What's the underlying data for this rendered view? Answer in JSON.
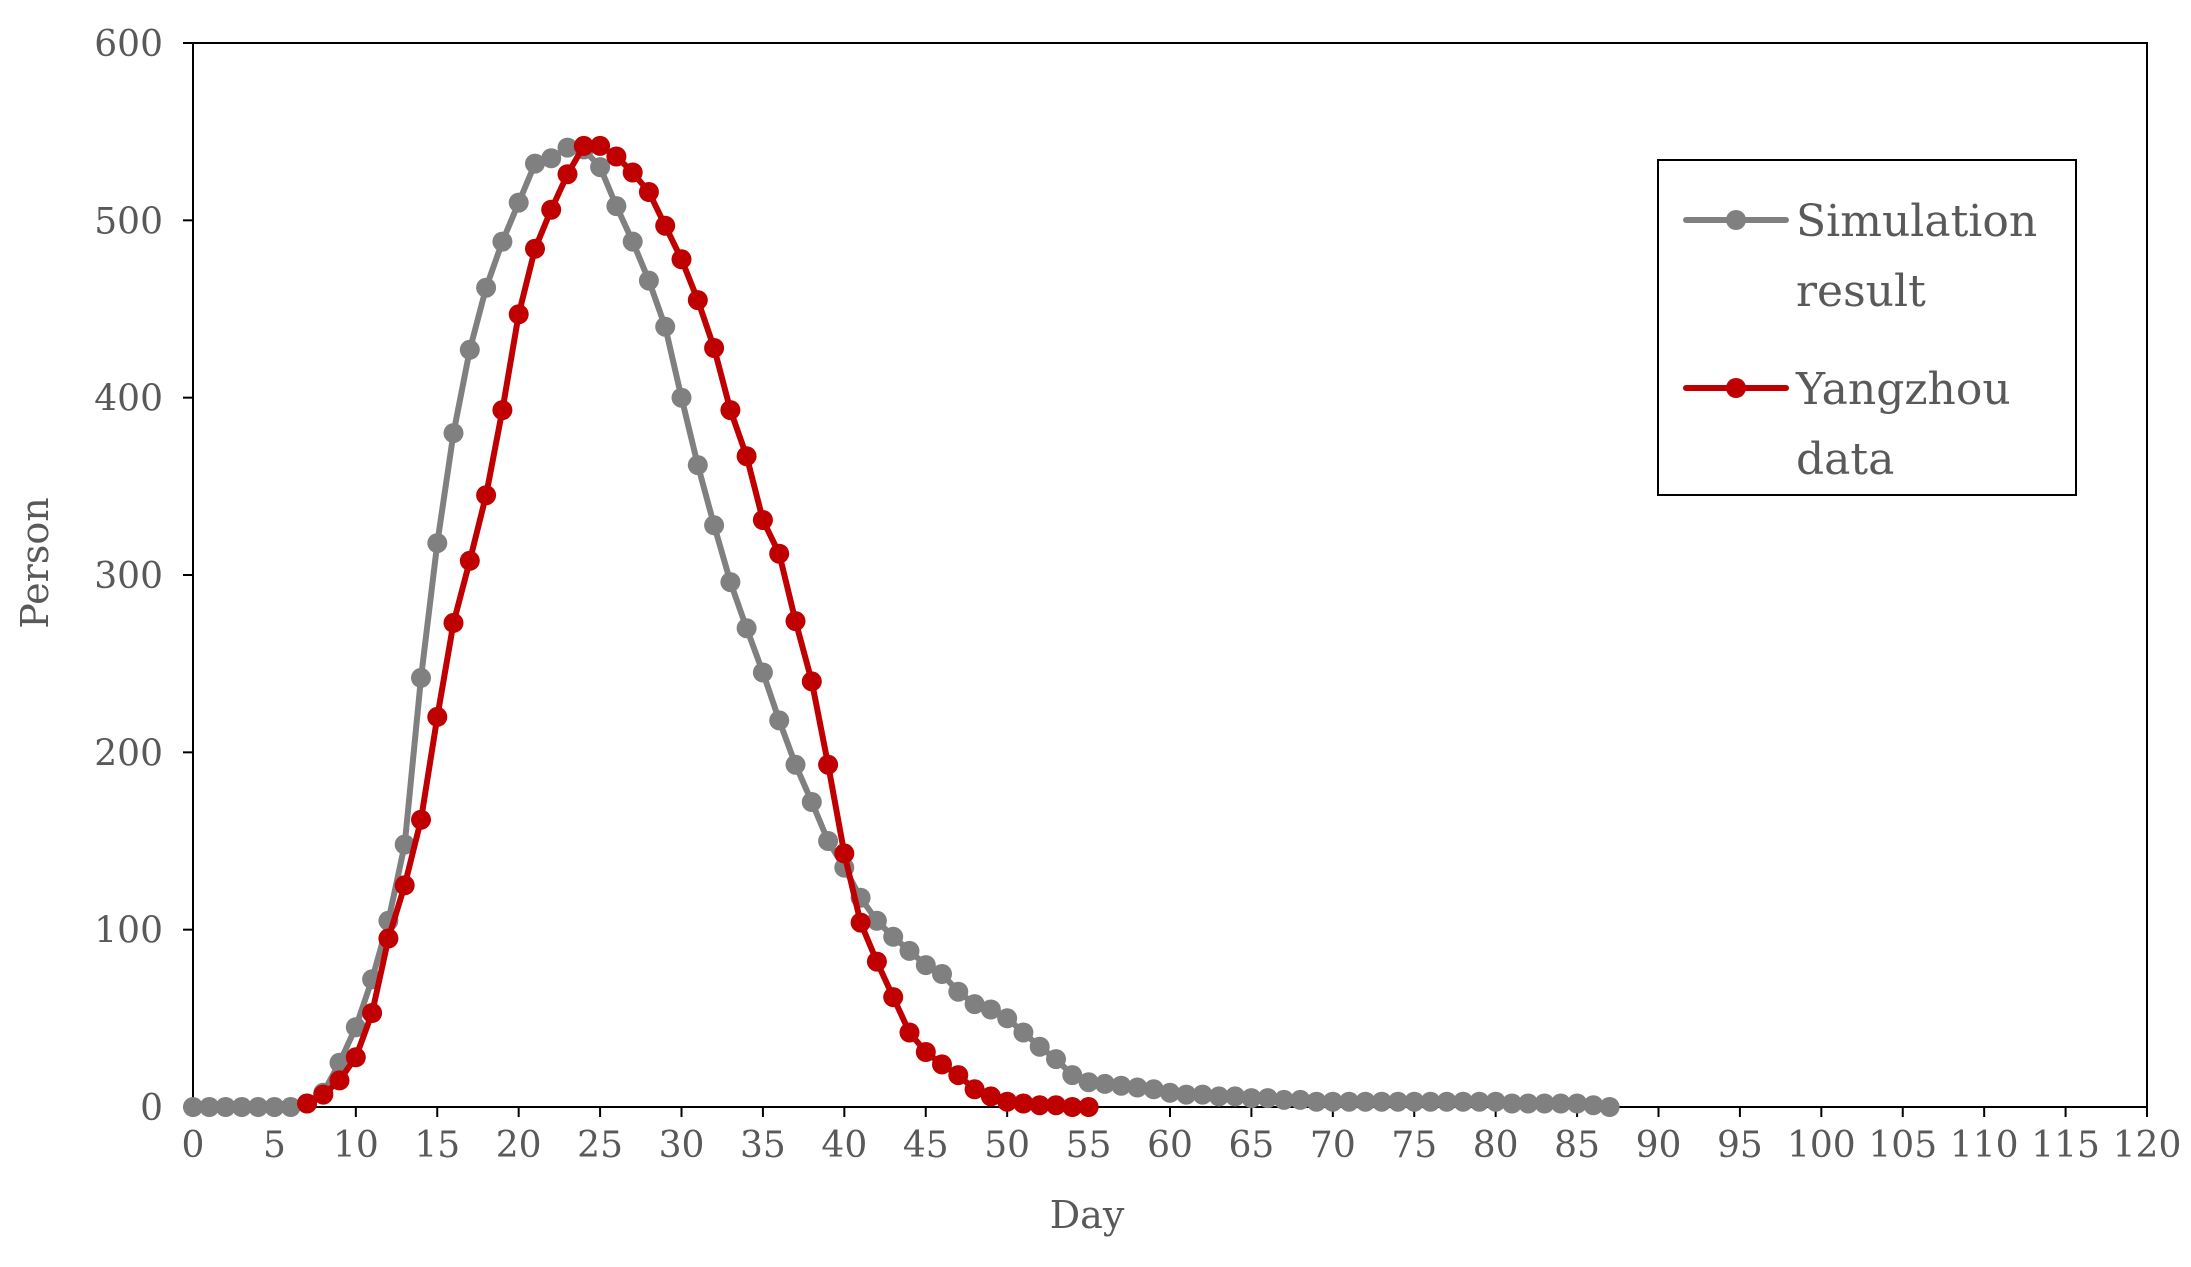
{
  "chart_data": {
    "type": "line",
    "title": "",
    "xlabel": "Day",
    "ylabel": "Person",
    "xlim": [
      0,
      120
    ],
    "ylim": [
      0,
      600
    ],
    "xticks": [
      0,
      5,
      10,
      15,
      20,
      25,
      30,
      35,
      40,
      45,
      50,
      55,
      60,
      65,
      70,
      75,
      80,
      85,
      90,
      95,
      100,
      105,
      110,
      115,
      120
    ],
    "yticks": [
      0,
      100,
      200,
      300,
      400,
      500,
      600
    ],
    "grid": false,
    "legend_position": "top-right",
    "series": [
      {
        "name": "Simulation result",
        "color": "#808080",
        "x": [
          0,
          1,
          2,
          3,
          4,
          5,
          6,
          7,
          8,
          9,
          10,
          11,
          12,
          13,
          14,
          15,
          16,
          17,
          18,
          19,
          20,
          21,
          22,
          23,
          24,
          25,
          26,
          27,
          28,
          29,
          30,
          31,
          32,
          33,
          34,
          35,
          36,
          37,
          38,
          39,
          40,
          41,
          42,
          43,
          44,
          45,
          46,
          47,
          48,
          49,
          50,
          51,
          52,
          53,
          54,
          55,
          56,
          57,
          58,
          59,
          60,
          61,
          62,
          63,
          64,
          65,
          66,
          67,
          68,
          69,
          70,
          71,
          72,
          73,
          74,
          75,
          76,
          77,
          78,
          79,
          80,
          81,
          82,
          83,
          84,
          85,
          86,
          87
        ],
        "values": [
          0,
          0,
          0,
          0,
          0,
          0,
          0,
          2,
          8,
          25,
          45,
          72,
          105,
          148,
          242,
          318,
          380,
          427,
          462,
          488,
          510,
          532,
          535,
          541,
          540,
          530,
          508,
          488,
          466,
          440,
          400,
          362,
          328,
          296,
          270,
          245,
          218,
          193,
          172,
          150,
          135,
          118,
          105,
          96,
          88,
          80,
          75,
          65,
          58,
          55,
          50,
          42,
          34,
          27,
          18,
          14,
          13,
          12,
          11,
          10,
          8,
          7,
          7,
          6,
          6,
          5,
          5,
          4,
          4,
          3,
          3,
          3,
          3,
          3,
          3,
          3,
          3,
          3,
          3,
          3,
          3,
          2,
          2,
          2,
          2,
          2,
          1,
          0
        ]
      },
      {
        "name": "Yangzhou data",
        "color": "#C00000",
        "x": [
          7,
          8,
          9,
          10,
          11,
          12,
          13,
          14,
          15,
          16,
          17,
          18,
          19,
          20,
          21,
          22,
          23,
          24,
          25,
          26,
          27,
          28,
          29,
          30,
          31,
          32,
          33,
          34,
          35,
          36,
          37,
          38,
          39,
          40,
          41,
          42,
          43,
          44,
          45,
          46,
          47,
          48,
          49,
          50,
          51,
          52,
          53,
          54,
          55
        ],
        "values": [
          2,
          7,
          15,
          28,
          53,
          95,
          125,
          162,
          220,
          273,
          308,
          345,
          393,
          447,
          484,
          506,
          526,
          542,
          542,
          536,
          527,
          516,
          497,
          478,
          455,
          428,
          393,
          367,
          331,
          312,
          274,
          240,
          193,
          143,
          104,
          82,
          62,
          42,
          31,
          24,
          18,
          10,
          6,
          3,
          2,
          1,
          1,
          0,
          0
        ]
      }
    ]
  }
}
